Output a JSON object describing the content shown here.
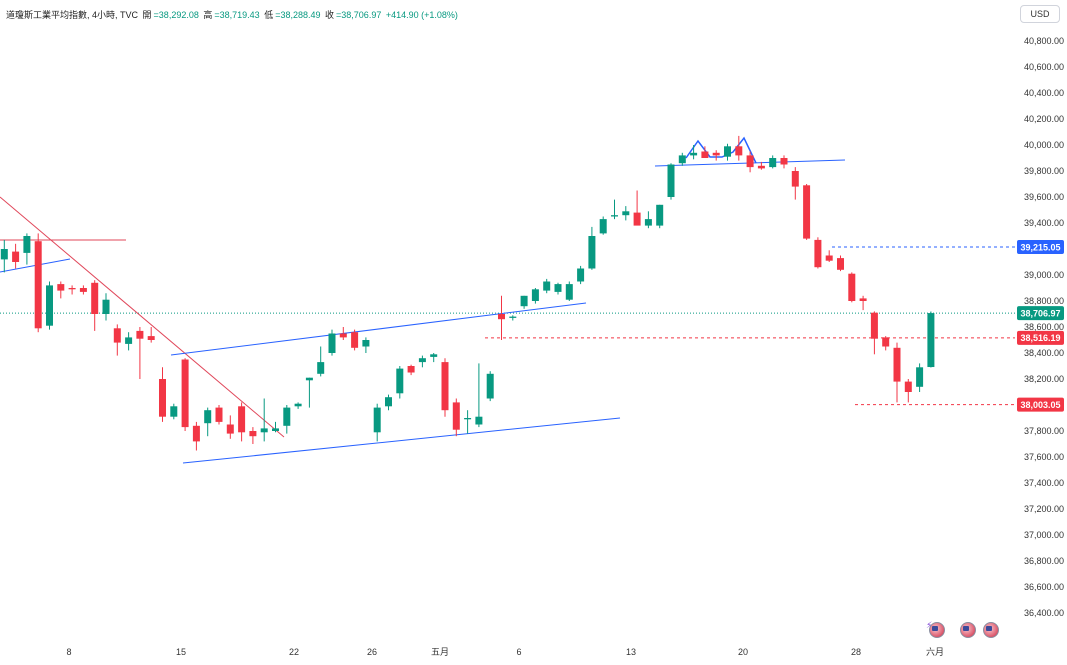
{
  "header": {
    "symbol": "道瓊斯工業平均指數, 4小時, TVC",
    "open_label": "開",
    "open": "=38,292.08",
    "high_label": "高",
    "high": "=38,719.43",
    "low_label": "低",
    "low": "=38,288.49",
    "close_label": "收",
    "close": "=38,706.97",
    "change": "+414.90 (+1.08%)"
  },
  "currency": "USD",
  "colors": {
    "up": "#089981",
    "down": "#f23645",
    "trend_blue": "#2962ff",
    "trend_red": "#e0475a",
    "level_red": "#f23645",
    "level_blue": "#2962ff",
    "close_line": "#089981"
  },
  "chart_data": {
    "type": "candlestick",
    "title": "道瓊斯工業平均指數, 4小時, TVC",
    "ylim": [
      36300,
      40950
    ],
    "y_ticks": [
      "40,800.00",
      "40,600.00",
      "40,400.00",
      "40,200.00",
      "40,000.00",
      "39,800.00",
      "39,600.00",
      "39,400.00",
      "39,200.00",
      "39,000.00",
      "38,800.00",
      "38,600.00",
      "38,400.00",
      "38,200.00",
      "38,000.00",
      "37,800.00",
      "37,600.00",
      "37,400.00",
      "37,200.00",
      "37,000.00",
      "36,800.00",
      "36,600.00",
      "36,400.00"
    ],
    "x_labels": [
      "8",
      "15",
      "22",
      "26",
      "五月",
      "6",
      "13",
      "20",
      "28",
      "六月"
    ],
    "price_labels": [
      {
        "text": "39,215.05",
        "kind": "level-blue",
        "value": 39215.05
      },
      {
        "text": "38,706.97",
        "kind": "last",
        "value": 38706.97
      },
      {
        "text": "38,516.19",
        "kind": "level-red",
        "value": 38516.19
      },
      {
        "text": "38,003.05",
        "kind": "level-red",
        "value": 38003.05
      }
    ],
    "grid": false,
    "candles": [
      {
        "o": 39120,
        "h": 39270,
        "l": 39020,
        "c": 39200
      },
      {
        "o": 39180,
        "h": 39240,
        "l": 39050,
        "c": 39100
      },
      {
        "o": 39170,
        "h": 39320,
        "l": 39080,
        "c": 39300
      },
      {
        "o": 39260,
        "h": 39320,
        "l": 38560,
        "c": 38590
      },
      {
        "o": 38610,
        "h": 38950,
        "l": 38580,
        "c": 38920
      },
      {
        "o": 38930,
        "h": 38950,
        "l": 38820,
        "c": 38880
      },
      {
        "o": 38900,
        "h": 38920,
        "l": 38850,
        "c": 38890
      },
      {
        "o": 38900,
        "h": 38920,
        "l": 38850,
        "c": 38870
      },
      {
        "o": 38940,
        "h": 38960,
        "l": 38570,
        "c": 38700
      },
      {
        "o": 38700,
        "h": 38860,
        "l": 38650,
        "c": 38810
      },
      {
        "o": 38590,
        "h": 38620,
        "l": 38380,
        "c": 38480
      },
      {
        "o": 38470,
        "h": 38560,
        "l": 38420,
        "c": 38520
      },
      {
        "o": 38570,
        "h": 38600,
        "l": 38200,
        "c": 38510
      },
      {
        "o": 38530,
        "h": 38600,
        "l": 38480,
        "c": 38500
      },
      {
        "o": 38200,
        "h": 38290,
        "l": 37870,
        "c": 37910
      },
      {
        "o": 37910,
        "h": 38010,
        "l": 37890,
        "c": 37990
      },
      {
        "o": 38350,
        "h": 38360,
        "l": 37800,
        "c": 37830
      },
      {
        "o": 37840,
        "h": 37870,
        "l": 37650,
        "c": 37720
      },
      {
        "o": 37860,
        "h": 37980,
        "l": 37760,
        "c": 37960
      },
      {
        "o": 37980,
        "h": 38000,
        "l": 37850,
        "c": 37870
      },
      {
        "o": 37850,
        "h": 37920,
        "l": 37740,
        "c": 37780
      },
      {
        "o": 37990,
        "h": 38020,
        "l": 37720,
        "c": 37790
      },
      {
        "o": 37800,
        "h": 37830,
        "l": 37700,
        "c": 37760
      },
      {
        "o": 37790,
        "h": 38050,
        "l": 37720,
        "c": 37820
      },
      {
        "o": 37800,
        "h": 37870,
        "l": 37790,
        "c": 37820
      },
      {
        "o": 37840,
        "h": 38000,
        "l": 37780,
        "c": 37980
      },
      {
        "o": 37990,
        "h": 38020,
        "l": 37970,
        "c": 38010
      },
      {
        "o": 38190,
        "h": 38210,
        "l": 37980,
        "c": 38210
      },
      {
        "o": 38240,
        "h": 38450,
        "l": 38220,
        "c": 38330
      },
      {
        "o": 38400,
        "h": 38580,
        "l": 38380,
        "c": 38550
      },
      {
        "o": 38550,
        "h": 38600,
        "l": 38500,
        "c": 38520
      },
      {
        "o": 38560,
        "h": 38580,
        "l": 38420,
        "c": 38440
      },
      {
        "o": 38450,
        "h": 38520,
        "l": 38400,
        "c": 38500
      },
      {
        "o": 37790,
        "h": 38010,
        "l": 37720,
        "c": 37980
      },
      {
        "o": 37990,
        "h": 38080,
        "l": 37960,
        "c": 38060
      },
      {
        "o": 38090,
        "h": 38300,
        "l": 38050,
        "c": 38280
      },
      {
        "o": 38300,
        "h": 38310,
        "l": 38230,
        "c": 38250
      },
      {
        "o": 38330,
        "h": 38380,
        "l": 38290,
        "c": 38360
      },
      {
        "o": 38370,
        "h": 38400,
        "l": 38330,
        "c": 38390
      },
      {
        "o": 38330,
        "h": 38360,
        "l": 37910,
        "c": 37960
      },
      {
        "o": 38020,
        "h": 38050,
        "l": 37760,
        "c": 37810
      },
      {
        "o": 37890,
        "h": 37960,
        "l": 37780,
        "c": 37900
      },
      {
        "o": 37850,
        "h": 38320,
        "l": 37830,
        "c": 37910
      },
      {
        "o": 38050,
        "h": 38260,
        "l": 38030,
        "c": 38240
      },
      {
        "o": 38700,
        "h": 38840,
        "l": 38500,
        "c": 38660
      },
      {
        "o": 38670,
        "h": 38690,
        "l": 38650,
        "c": 38680
      },
      {
        "o": 38760,
        "h": 38840,
        "l": 38740,
        "c": 38840
      },
      {
        "o": 38800,
        "h": 38900,
        "l": 38780,
        "c": 38890
      },
      {
        "o": 38880,
        "h": 38970,
        "l": 38860,
        "c": 38950
      },
      {
        "o": 38870,
        "h": 38940,
        "l": 38850,
        "c": 38930
      },
      {
        "o": 38810,
        "h": 38950,
        "l": 38800,
        "c": 38930
      },
      {
        "o": 38950,
        "h": 39070,
        "l": 38930,
        "c": 39050
      },
      {
        "o": 39050,
        "h": 39370,
        "l": 39040,
        "c": 39300
      },
      {
        "o": 39320,
        "h": 39450,
        "l": 39310,
        "c": 39430
      },
      {
        "o": 39450,
        "h": 39580,
        "l": 39430,
        "c": 39460
      },
      {
        "o": 39460,
        "h": 39530,
        "l": 39420,
        "c": 39490
      },
      {
        "o": 39480,
        "h": 39650,
        "l": 39390,
        "c": 39380
      },
      {
        "o": 39380,
        "h": 39490,
        "l": 39360,
        "c": 39430
      },
      {
        "o": 39380,
        "h": 39540,
        "l": 39360,
        "c": 39540
      },
      {
        "o": 39600,
        "h": 39860,
        "l": 39580,
        "c": 39850
      },
      {
        "o": 39860,
        "h": 39940,
        "l": 39840,
        "c": 39920
      },
      {
        "o": 39920,
        "h": 40000,
        "l": 39890,
        "c": 39940
      },
      {
        "o": 39950,
        "h": 39990,
        "l": 39910,
        "c": 39900
      },
      {
        "o": 39940,
        "h": 39960,
        "l": 39880,
        "c": 39920
      },
      {
        "o": 39910,
        "h": 40010,
        "l": 39880,
        "c": 39990
      },
      {
        "o": 39990,
        "h": 40070,
        "l": 39880,
        "c": 39920
      },
      {
        "o": 39920,
        "h": 39950,
        "l": 39790,
        "c": 39830
      },
      {
        "o": 39840,
        "h": 39870,
        "l": 39810,
        "c": 39820
      },
      {
        "o": 39830,
        "h": 39920,
        "l": 39820,
        "c": 39900
      },
      {
        "o": 39900,
        "h": 39920,
        "l": 39820,
        "c": 39850
      },
      {
        "o": 39800,
        "h": 39830,
        "l": 39580,
        "c": 39680
      },
      {
        "o": 39690,
        "h": 39700,
        "l": 39270,
        "c": 39280
      },
      {
        "o": 39270,
        "h": 39290,
        "l": 39050,
        "c": 39060
      },
      {
        "o": 39150,
        "h": 39190,
        "l": 39100,
        "c": 39110
      },
      {
        "o": 39130,
        "h": 39150,
        "l": 39030,
        "c": 39040
      },
      {
        "o": 39010,
        "h": 39020,
        "l": 38790,
        "c": 38800
      },
      {
        "o": 38820,
        "h": 38840,
        "l": 38730,
        "c": 38800
      },
      {
        "o": 38710,
        "h": 38720,
        "l": 38390,
        "c": 38510
      },
      {
        "o": 38520,
        "h": 38530,
        "l": 38420,
        "c": 38450
      },
      {
        "o": 38440,
        "h": 38480,
        "l": 38020,
        "c": 38180
      },
      {
        "o": 38180,
        "h": 38200,
        "l": 38020,
        "c": 38100
      },
      {
        "o": 38140,
        "h": 38320,
        "l": 38100,
        "c": 38290
      },
      {
        "o": 38292.08,
        "h": 38719.43,
        "l": 38288.49,
        "c": 38706.97
      }
    ]
  }
}
